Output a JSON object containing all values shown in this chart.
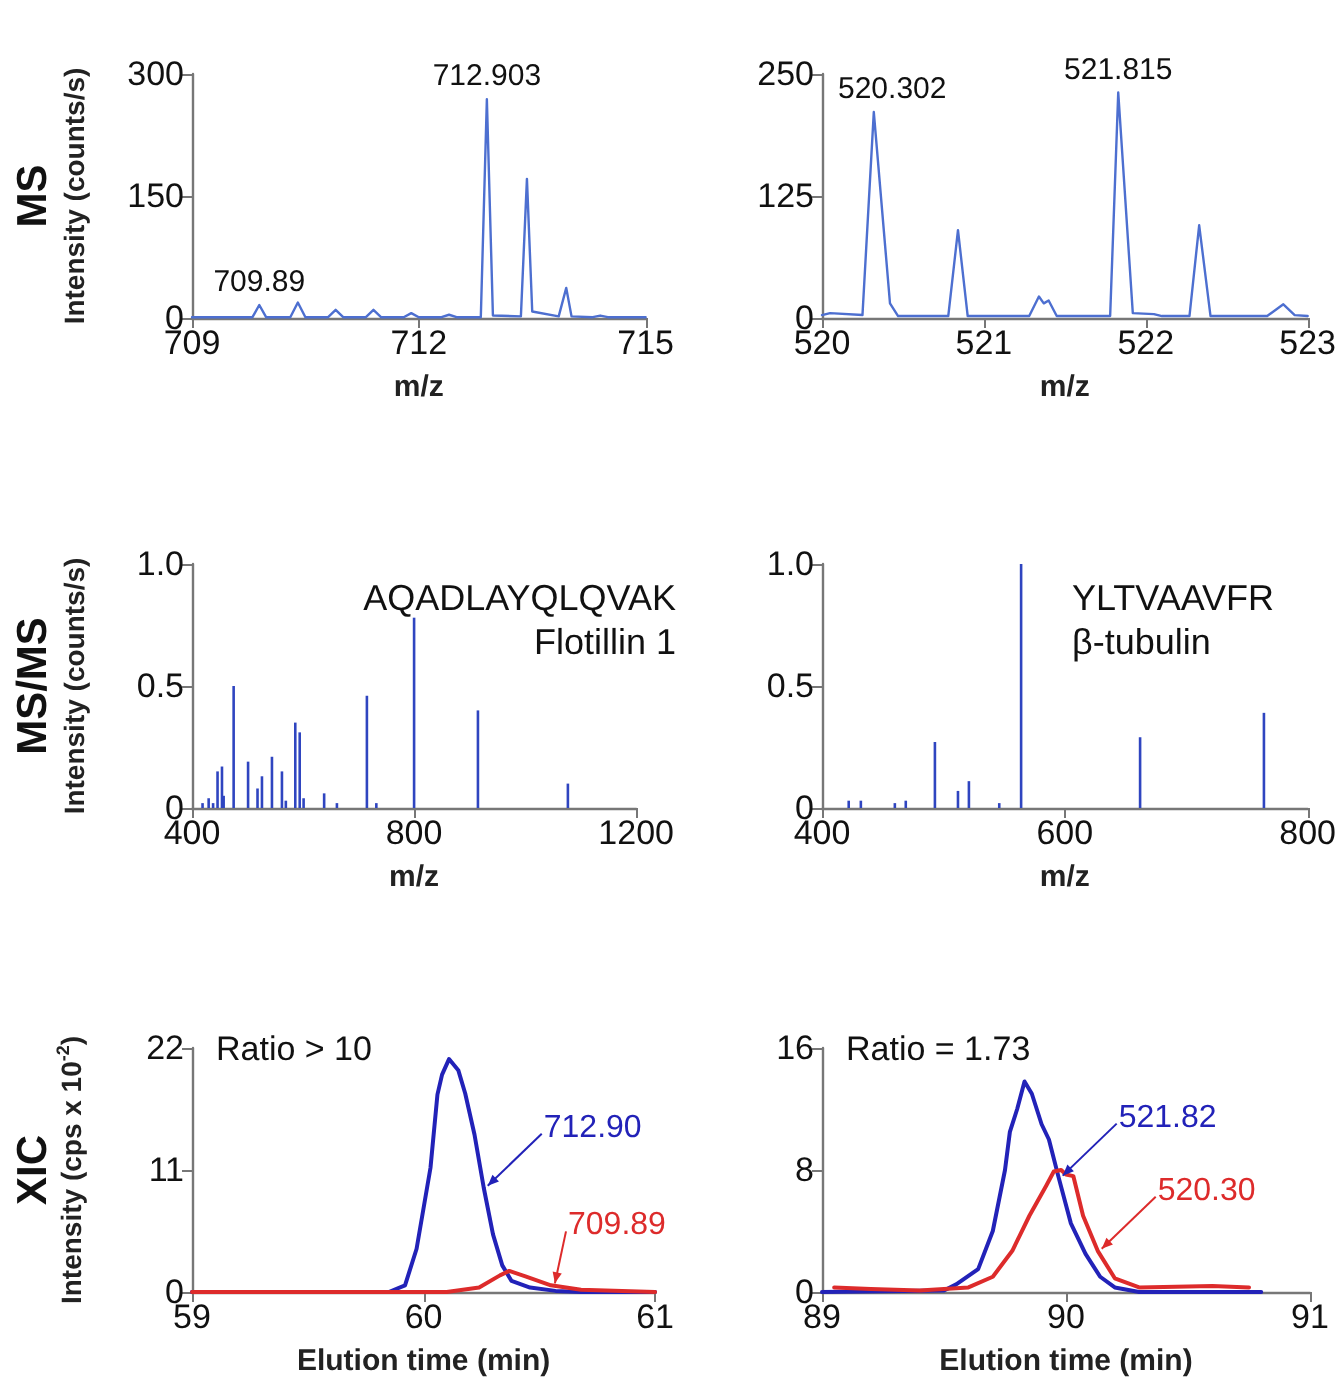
{
  "chart_data": [
    {
      "type": "line",
      "title": "MS",
      "ylabel": "Intensity (counts/s)",
      "xlabel": "m/z",
      "xlim": [
        709,
        715
      ],
      "xticks": [
        709,
        712,
        715
      ],
      "ylim": [
        0,
        300
      ],
      "yticks": [
        0,
        150,
        300
      ],
      "grid": false,
      "legend": false,
      "marker": "none",
      "series": [
        {
          "color": "#4d6fd0",
          "x": [
            709,
            709.8,
            709.89,
            709.98,
            710.3,
            710.4,
            710.5,
            710.8,
            710.9,
            711.0,
            711.3,
            711.4,
            711.5,
            711.8,
            711.9,
            712.0,
            712.3,
            712.4,
            712.5,
            712.82,
            712.9,
            712.98,
            713.35,
            713.43,
            713.5,
            713.85,
            713.95,
            714.02,
            714.3,
            714.4,
            714.5,
            715
          ],
          "values": [
            1,
            1,
            16,
            1,
            1,
            19,
            1,
            1,
            10,
            1,
            1,
            10,
            1,
            1,
            6,
            1,
            1,
            4,
            1,
            1,
            269,
            3,
            2,
            171,
            8,
            2,
            37,
            2,
            1,
            3,
            1,
            1
          ]
        }
      ],
      "annotations": [
        {
          "text": "709.89",
          "x": 709.89,
          "y": 16
        },
        {
          "text": "712.903",
          "x": 712.9,
          "y": 269
        }
      ]
    },
    {
      "type": "line",
      "xlabel": "m/z",
      "xlim": [
        520,
        523
      ],
      "xticks": [
        520,
        521,
        522,
        523
      ],
      "ylim": [
        0,
        250
      ],
      "yticks": [
        0,
        125,
        250
      ],
      "grid": false,
      "legend": false,
      "marker": "none",
      "series": [
        {
          "color": "#4d6fd0",
          "x": [
            520,
            520.05,
            520.25,
            520.32,
            520.42,
            520.47,
            520.78,
            520.84,
            520.9,
            521.28,
            521.34,
            521.37,
            521.4,
            521.45,
            521.78,
            521.83,
            521.92,
            522.05,
            522.1,
            522.27,
            522.33,
            522.4,
            522.75,
            522.85,
            522.92,
            523
          ],
          "values": [
            3,
            5,
            3,
            211,
            15,
            2,
            2,
            90,
            2,
            2,
            22,
            15,
            18,
            2,
            2,
            231,
            5,
            4,
            2,
            2,
            95,
            2,
            2,
            14,
            3,
            2
          ]
        }
      ],
      "annotations": [
        {
          "text": "520.302",
          "x": 520.32,
          "y": 211
        },
        {
          "text": "521.815",
          "x": 521.83,
          "y": 231
        }
      ]
    },
    {
      "type": "bar",
      "title": "MS/MS",
      "ylabel": "Intensity (counts/s)",
      "xlabel": "m/z",
      "xlim": [
        400,
        1200
      ],
      "xticks": [
        400,
        800,
        1200
      ],
      "ylim": [
        0,
        1
      ],
      "yticks": [
        0,
        0.5,
        {
          "value": 1,
          "label": "1.0"
        }
      ],
      "grid": false,
      "legend": false,
      "series": [
        {
          "color": "#2f45c0",
          "x": [
            419,
            430,
            438,
            446,
            454,
            457,
            475,
            501,
            518,
            526,
            544,
            562,
            569,
            586,
            594,
            601,
            638,
            661,
            715,
            732,
            800,
            915,
            1077
          ],
          "values": [
            0.02,
            0.04,
            0.02,
            0.15,
            0.17,
            0.05,
            0.5,
            0.19,
            0.08,
            0.13,
            0.21,
            0.15,
            0.03,
            0.35,
            0.31,
            0.04,
            0.06,
            0.02,
            0.46,
            0.02,
            0.78,
            0.4,
            0.1
          ]
        }
      ],
      "annotations": [
        "AQADLAYQLQVAK",
        "Flotillin 1"
      ]
    },
    {
      "type": "bar",
      "xlabel": "m/z",
      "xlim": [
        400,
        800
      ],
      "xticks": [
        400,
        600,
        800
      ],
      "ylim": [
        0,
        1
      ],
      "yticks": [
        0,
        0.5,
        {
          "value": 1,
          "label": "1.0"
        }
      ],
      "grid": false,
      "legend": false,
      "series": [
        {
          "color": "#2f45c0",
          "x": [
            422,
            432,
            460,
            469,
            493,
            512,
            521,
            546,
            564,
            662,
            764
          ],
          "values": [
            0.03,
            0.03,
            0.02,
            0.03,
            0.27,
            0.07,
            0.11,
            0.02,
            1.0,
            0.29,
            0.39
          ]
        }
      ],
      "annotations": [
        "YLTVAAVFR",
        "β-tubulin"
      ]
    },
    {
      "type": "line",
      "title": "XIC",
      "ylabel": "Intensity (cps x 10$^{-2}$)",
      "xlabel": "Elution time (min)",
      "xlim": [
        59,
        61
      ],
      "xticks": [
        59,
        60,
        61
      ],
      "ylim": [
        0,
        22
      ],
      "yticks": [
        0,
        11,
        22
      ],
      "grid": false,
      "legend": false,
      "marker": "none",
      "series": [
        {
          "name": "712.90",
          "color": "#2222b8",
          "x": [
            59,
            59.85,
            59.92,
            59.97,
            60.03,
            60.06,
            60.08,
            60.11,
            60.15,
            60.18,
            60.22,
            60.26,
            60.3,
            60.34,
            60.38,
            60.46,
            60.57,
            60.68,
            61
          ],
          "values": [
            0,
            0,
            0.6,
            3.9,
            11.2,
            17.8,
            19.6,
            21,
            20,
            17.9,
            14.2,
            9.4,
            5.2,
            2.4,
            1,
            0.4,
            0.1,
            0,
            0
          ]
        },
        {
          "name": "709.89",
          "color": "#dd2b2b",
          "x": [
            59,
            60.1,
            60.24,
            60.33,
            60.37,
            60.44,
            60.55,
            60.68,
            61
          ],
          "values": [
            0,
            0,
            0.4,
            1.5,
            1.9,
            1.4,
            0.6,
            0.2,
            0
          ]
        }
      ],
      "annotations": [
        "Ratio > 10"
      ]
    },
    {
      "type": "line",
      "xlabel": "Elution time (min)",
      "xlim": [
        89,
        91
      ],
      "xticks": [
        89,
        90,
        91
      ],
      "ylim": [
        0,
        16
      ],
      "yticks": [
        0,
        8,
        16
      ],
      "grid": false,
      "legend": false,
      "marker": "none",
      "series": [
        {
          "name": "521.82",
          "color": "#2222b8",
          "x": [
            89,
            89.5,
            89.55,
            89.64,
            89.7,
            89.75,
            89.77,
            89.8,
            89.83,
            89.86,
            89.9,
            89.93,
            89.97,
            90.02,
            90.08,
            90.14,
            90.2,
            90.3,
            90.8
          ],
          "values": [
            0,
            0.1,
            0.5,
            1.5,
            4,
            8,
            10.5,
            12,
            13.8,
            13,
            11,
            10,
            7.5,
            4.5,
            2.5,
            1,
            0.3,
            0,
            0
          ]
        },
        {
          "name": "520.30",
          "color": "#dd2b2b",
          "x": [
            89.05,
            89.2,
            89.4,
            89.6,
            89.7,
            89.78,
            89.85,
            89.92,
            89.95,
            89.98,
            90,
            90.03,
            90.07,
            90.13,
            90.2,
            90.3,
            90.6,
            90.75
          ],
          "values": [
            0.3,
            0.2,
            0.1,
            0.3,
            1,
            2.7,
            5,
            7,
            7.9,
            8,
            7.7,
            7.6,
            5,
            2.7,
            0.9,
            0.3,
            0.4,
            0.3
          ]
        }
      ],
      "annotations": [
        "Ratio = 1.73"
      ]
    }
  ]
}
